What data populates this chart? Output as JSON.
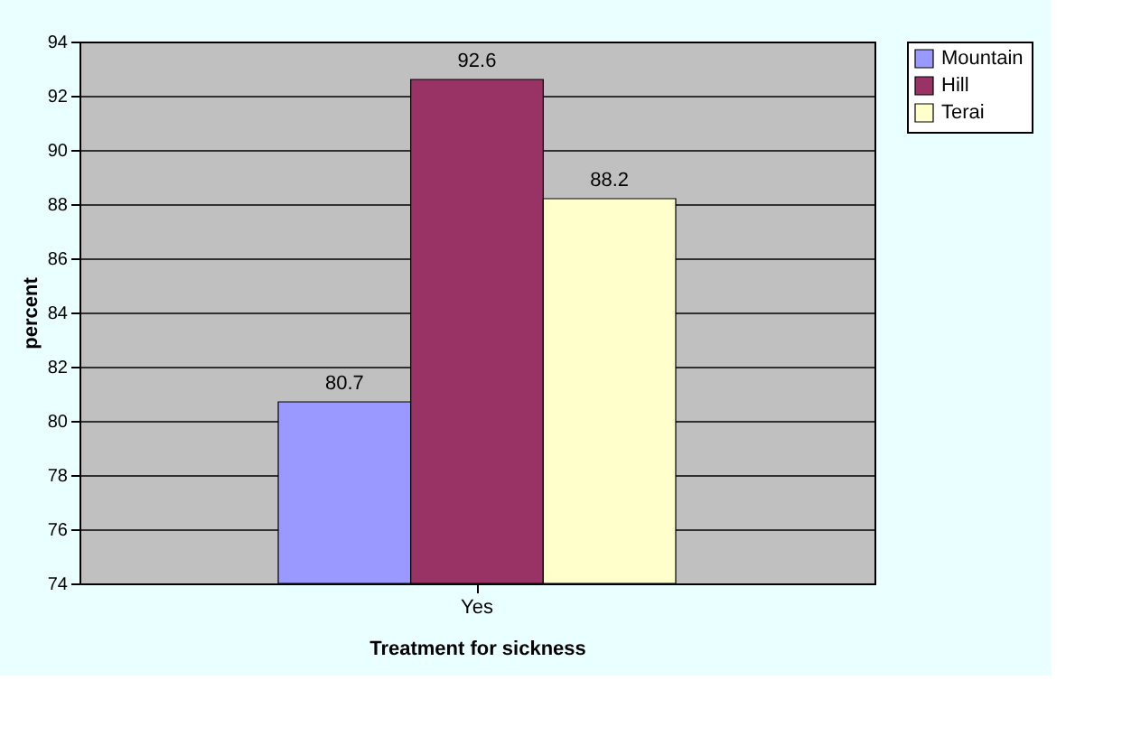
{
  "chart_data": {
    "type": "bar",
    "xlabel": "Treatment for sickness",
    "ylabel": "percent",
    "categories": [
      "Yes"
    ],
    "series": [
      {
        "name": "Mountain",
        "color": "#9999ff",
        "values": [
          80.7
        ]
      },
      {
        "name": "Hill",
        "color": "#993366",
        "values": [
          92.6
        ]
      },
      {
        "name": "Terai",
        "color": "#ffffcc",
        "values": [
          88.2
        ]
      }
    ],
    "ylim": [
      74,
      94
    ],
    "yticks": [
      74,
      76,
      78,
      80,
      82,
      84,
      86,
      88,
      90,
      92,
      94
    ],
    "grid": "y",
    "legend": "right",
    "data_labels": true
  }
}
